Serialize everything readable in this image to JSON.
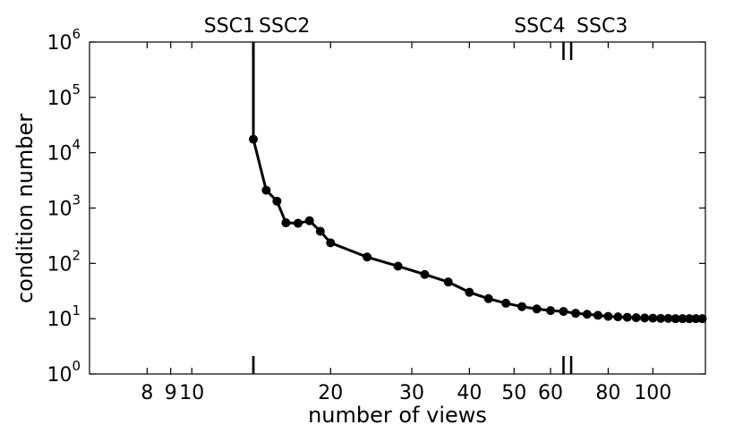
{
  "chart_data": {
    "type": "line",
    "xlabel": "number of views",
    "ylabel": "condition number",
    "x_scale": "log",
    "y_scale": "log",
    "xlim": [
      6,
      130
    ],
    "ylim": [
      1,
      1000000
    ],
    "grid": false,
    "x_ticks": [
      8,
      9,
      10,
      20,
      30,
      40,
      50,
      60,
      80,
      100
    ],
    "x_tick_labels": [
      "8",
      "9",
      "10",
      "20",
      "30",
      "40",
      "50",
      "60",
      "80",
      "100"
    ],
    "y_ticks": [
      {
        "value": 1,
        "base": "10",
        "exp": "0"
      },
      {
        "value": 10,
        "base": "10",
        "exp": "1"
      },
      {
        "value": 100,
        "base": "10",
        "exp": "2"
      },
      {
        "value": 1000,
        "base": "10",
        "exp": "3"
      },
      {
        "value": 10000,
        "base": "10",
        "exp": "4"
      },
      {
        "value": 100000,
        "base": "10",
        "exp": "5"
      },
      {
        "value": 1000000,
        "base": "10",
        "exp": "6"
      }
    ],
    "markers": [
      {
        "label": "SSC1",
        "x": 13.6,
        "anchor": "end"
      },
      {
        "label": "SSC2",
        "x": 13.6,
        "anchor": "start"
      },
      {
        "label": "SSC4",
        "x": 64.0,
        "anchor": "end"
      },
      {
        "label": "SSC3",
        "x": 66.5,
        "anchor": "start"
      }
    ],
    "series": [
      {
        "color": "#000000",
        "points": [
          {
            "x": 13.6,
            "y": 17500
          },
          {
            "x": 14.5,
            "y": 2100
          },
          {
            "x": 15.3,
            "y": 1330
          },
          {
            "x": 16.0,
            "y": 540
          },
          {
            "x": 17.0,
            "y": 530
          },
          {
            "x": 18.0,
            "y": 590
          },
          {
            "x": 19.0,
            "y": 380
          },
          {
            "x": 20.0,
            "y": 235
          },
          {
            "x": 24.0,
            "y": 130
          },
          {
            "x": 28.0,
            "y": 89
          },
          {
            "x": 32.0,
            "y": 63
          },
          {
            "x": 36.0,
            "y": 46
          },
          {
            "x": 40.0,
            "y": 30
          },
          {
            "x": 44.0,
            "y": 23
          },
          {
            "x": 48.0,
            "y": 19
          },
          {
            "x": 52.0,
            "y": 16.5
          },
          {
            "x": 56.0,
            "y": 15
          },
          {
            "x": 60.0,
            "y": 14
          },
          {
            "x": 64.0,
            "y": 13.5
          },
          {
            "x": 68.0,
            "y": 12.5
          },
          {
            "x": 72.0,
            "y": 12
          },
          {
            "x": 76.0,
            "y": 11.5
          },
          {
            "x": 80.0,
            "y": 11
          },
          {
            "x": 84.0,
            "y": 10.8
          },
          {
            "x": 88.0,
            "y": 10.6
          },
          {
            "x": 92.0,
            "y": 10.4
          },
          {
            "x": 96.0,
            "y": 10.3
          },
          {
            "x": 100.0,
            "y": 10.2
          },
          {
            "x": 104.0,
            "y": 10.1
          },
          {
            "x": 108.0,
            "y": 10.1
          },
          {
            "x": 112.0,
            "y": 10.0
          },
          {
            "x": 116.0,
            "y": 10.0
          },
          {
            "x": 120.0,
            "y": 10.0
          },
          {
            "x": 124.0,
            "y": 10.0
          },
          {
            "x": 128.0,
            "y": 10.0
          }
        ]
      }
    ]
  }
}
